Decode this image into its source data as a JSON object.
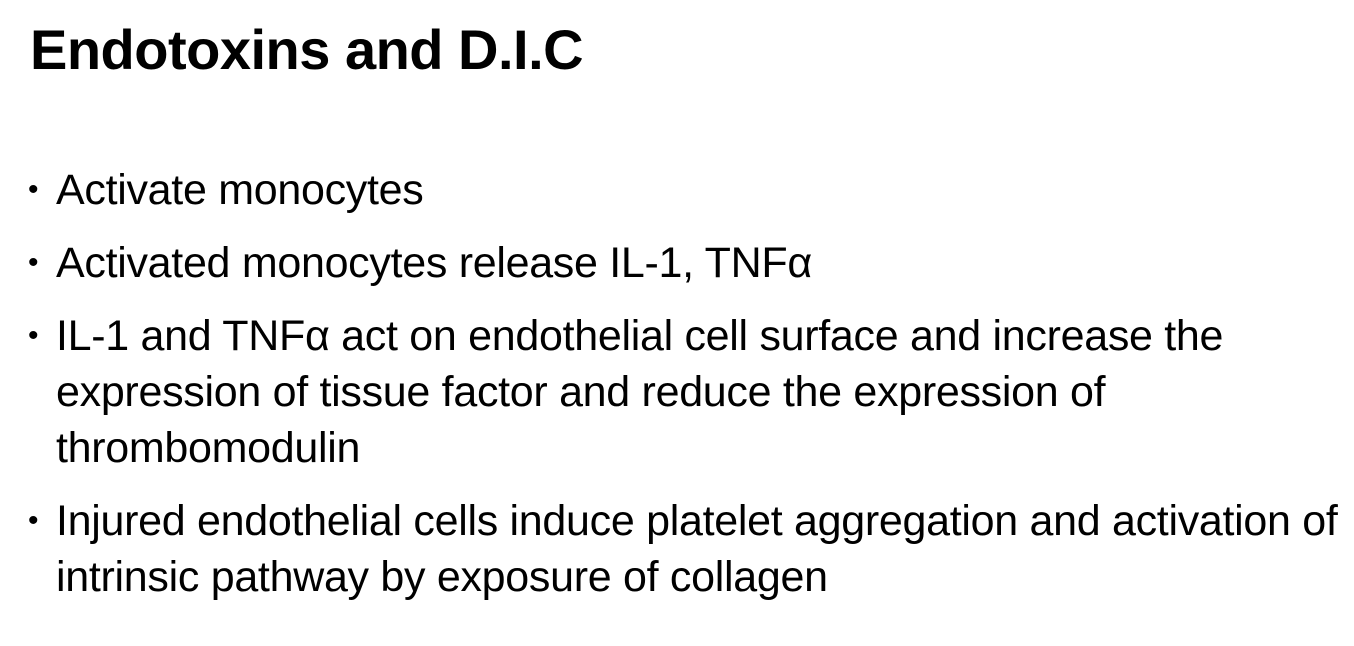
{
  "slide": {
    "title": "Endotoxins and D.I.C",
    "bullet_glyph": "•",
    "bullets": [
      {
        "text": "Activate monocytes"
      },
      {
        "text": "Activated monocytes release IL-1, TNFα"
      },
      {
        "text": "IL-1 and TNFα act on endothelial cell surface and increase the expression of tissue factor and reduce the expression of thrombomodulin"
      },
      {
        "text": "Injured endothelial cells induce platelet aggregation and activation of intrinsic pathway by exposure of collagen"
      }
    ]
  },
  "colors": {
    "background": "#ffffff",
    "text": "#000000"
  }
}
